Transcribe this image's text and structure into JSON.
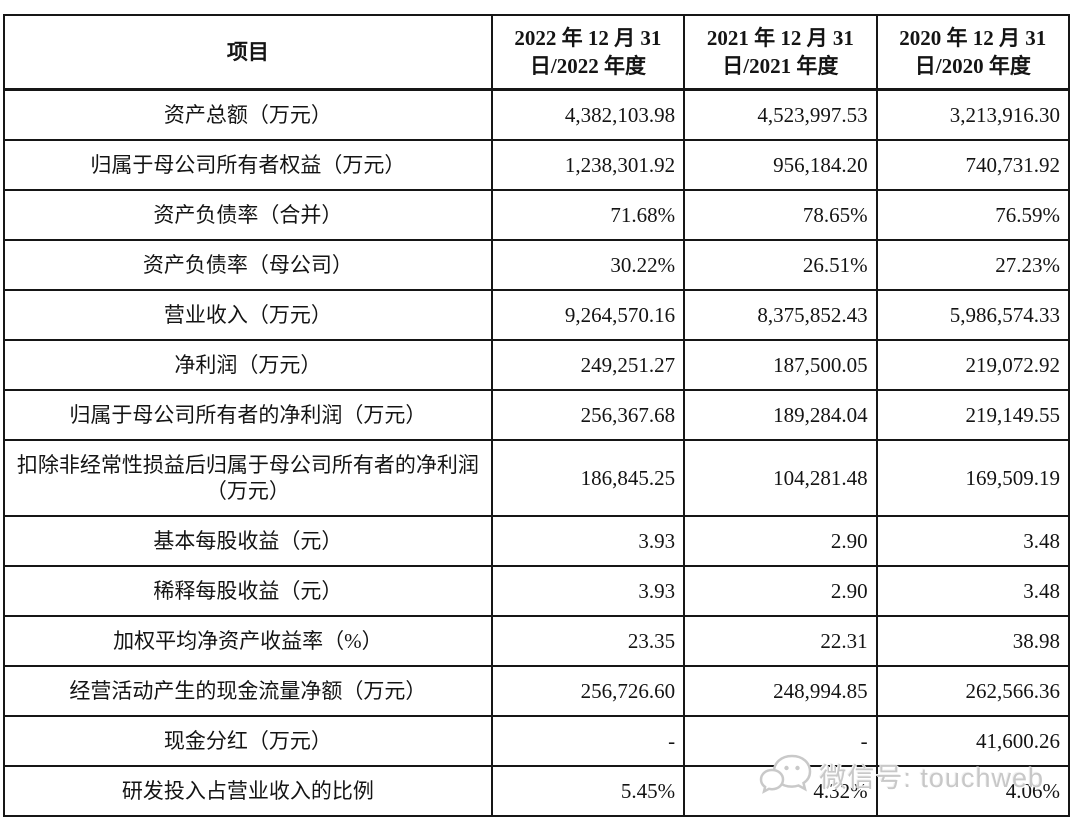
{
  "table": {
    "columns": [
      {
        "label": "项目"
      },
      {
        "label": "2022 年 12 月 31\n日/2022 年度"
      },
      {
        "label": "2021 年 12 月 31\n日/2021 年度"
      },
      {
        "label": "2020 年 12 月 31\n日/2020 年度"
      }
    ],
    "rows": [
      {
        "label": "资产总额（万元）",
        "values": [
          "4,382,103.98",
          "4,523,997.53",
          "3,213,916.30"
        ]
      },
      {
        "label": "归属于母公司所有者权益（万元）",
        "values": [
          "1,238,301.92",
          "956,184.20",
          "740,731.92"
        ]
      },
      {
        "label": "资产负债率（合并）",
        "values": [
          "71.68%",
          "78.65%",
          "76.59%"
        ]
      },
      {
        "label": "资产负债率（母公司）",
        "values": [
          "30.22%",
          "26.51%",
          "27.23%"
        ]
      },
      {
        "label": "营业收入（万元）",
        "values": [
          "9,264,570.16",
          "8,375,852.43",
          "5,986,574.33"
        ]
      },
      {
        "label": "净利润（万元）",
        "values": [
          "249,251.27",
          "187,500.05",
          "219,072.92"
        ]
      },
      {
        "label": "归属于母公司所有者的净利润（万元）",
        "values": [
          "256,367.68",
          "189,284.04",
          "219,149.55"
        ]
      },
      {
        "label": "扣除非经常性损益后归属于母公司所有者的净利润（万元）",
        "values": [
          "186,845.25",
          "104,281.48",
          "169,509.19"
        ]
      },
      {
        "label": "基本每股收益（元）",
        "values": [
          "3.93",
          "2.90",
          "3.48"
        ]
      },
      {
        "label": "稀释每股收益（元）",
        "values": [
          "3.93",
          "2.90",
          "3.48"
        ]
      },
      {
        "label": "加权平均净资产收益率（%）",
        "values": [
          "23.35",
          "22.31",
          "38.98"
        ]
      },
      {
        "label": "经营活动产生的现金流量净额（万元）",
        "values": [
          "256,726.60",
          "248,994.85",
          "262,566.36"
        ]
      },
      {
        "label": "现金分红（万元）",
        "values": [
          "-",
          "-",
          "41,600.26"
        ]
      },
      {
        "label": "研发投入占营业收入的比例",
        "values": [
          "5.45%",
          "4.32%",
          "4.06%"
        ]
      }
    ]
  },
  "watermark": {
    "icon": "wechat-icon",
    "text": "微信号: touchweb"
  },
  "colors": {
    "background": "#ffffff",
    "border": "#161616",
    "text": "#141414",
    "watermark": "#c8c8c8"
  }
}
